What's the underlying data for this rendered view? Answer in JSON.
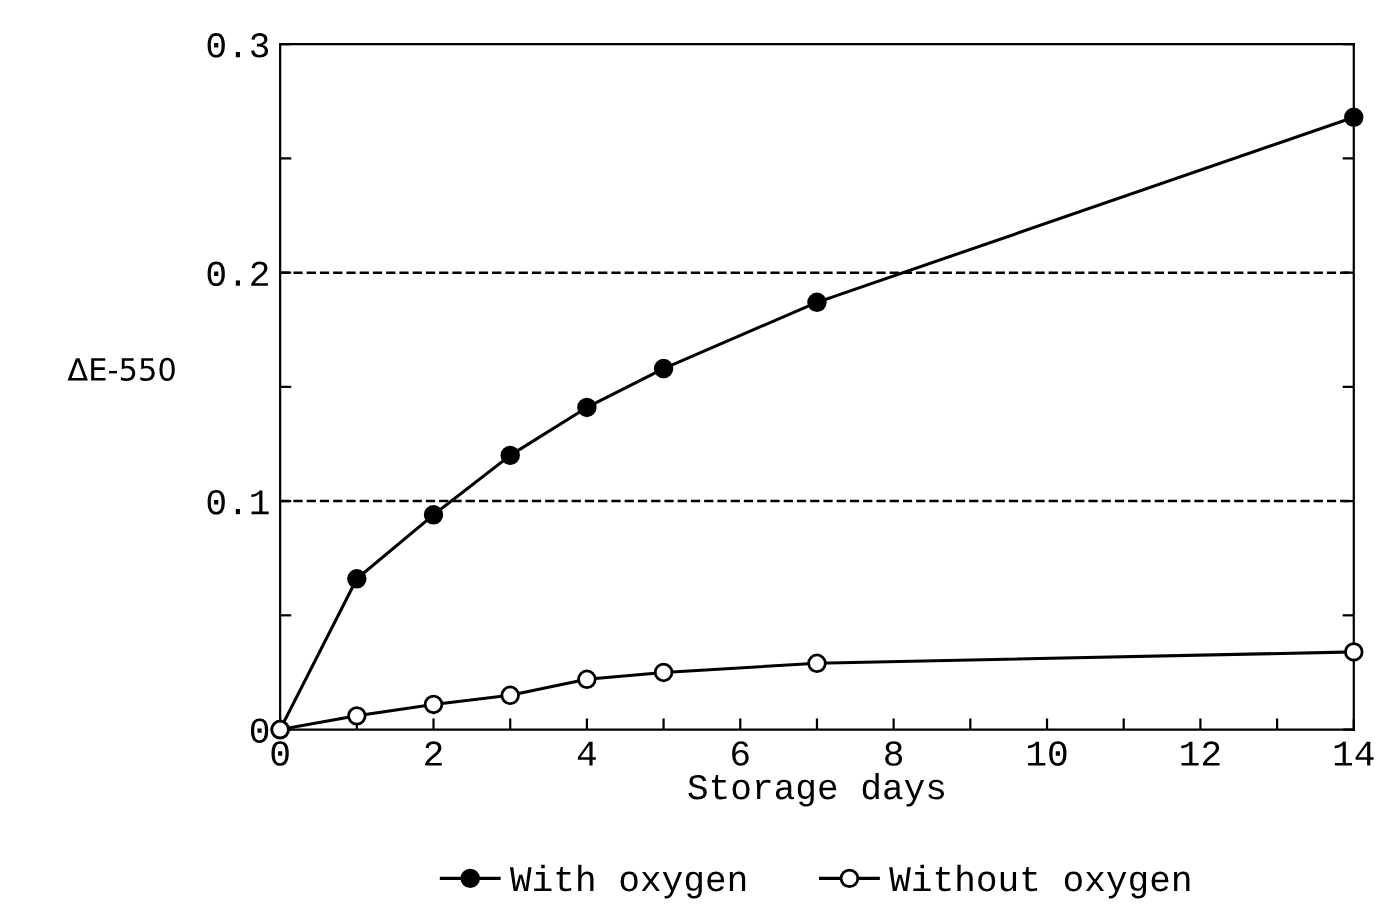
{
  "chart_data": {
    "type": "line",
    "xlabel": "Storage days",
    "ylabel": "ΔE-550",
    "x": [
      0,
      1,
      2,
      3,
      4,
      5,
      7,
      14
    ],
    "series": [
      {
        "name": "With oxygen",
        "color": "#000000",
        "marker": "circle",
        "values": [
          0,
          0.066,
          0.094,
          0.12,
          0.141,
          0.158,
          0.187,
          0.268
        ]
      },
      {
        "name": "Without oxygen",
        "color": "#000000",
        "marker": "circle",
        "values": [
          0,
          0.006,
          0.011,
          0.015,
          0.022,
          0.025,
          0.029,
          0.034
        ]
      }
    ],
    "xlim": [
      0,
      14
    ],
    "ylim": [
      0,
      0.3
    ],
    "xticks": [
      0,
      {
        "value": 1,
        "label": null
      },
      2,
      {
        "value": 3,
        "label": null
      },
      4,
      {
        "value": 5,
        "label": null
      },
      6,
      {
        "value": 7,
        "label": null
      },
      8,
      {
        "value": 9,
        "label": null
      },
      10,
      {
        "value": 11,
        "label": null
      },
      12,
      {
        "value": 13,
        "label": null
      },
      14
    ],
    "yticks": [
      0,
      {
        "value": 0.05,
        "label": null
      },
      {
        "value": 0.1,
        "label": "0.1"
      },
      {
        "value": 0.15,
        "label": null
      },
      {
        "value": 0.2,
        "label": "0.2"
      },
      {
        "value": 0.25,
        "label": null
      },
      {
        "value": 0.3,
        "label": "0.3"
      }
    ],
    "grid": "y",
    "line_style": "solid",
    "legend": "bottom"
  }
}
